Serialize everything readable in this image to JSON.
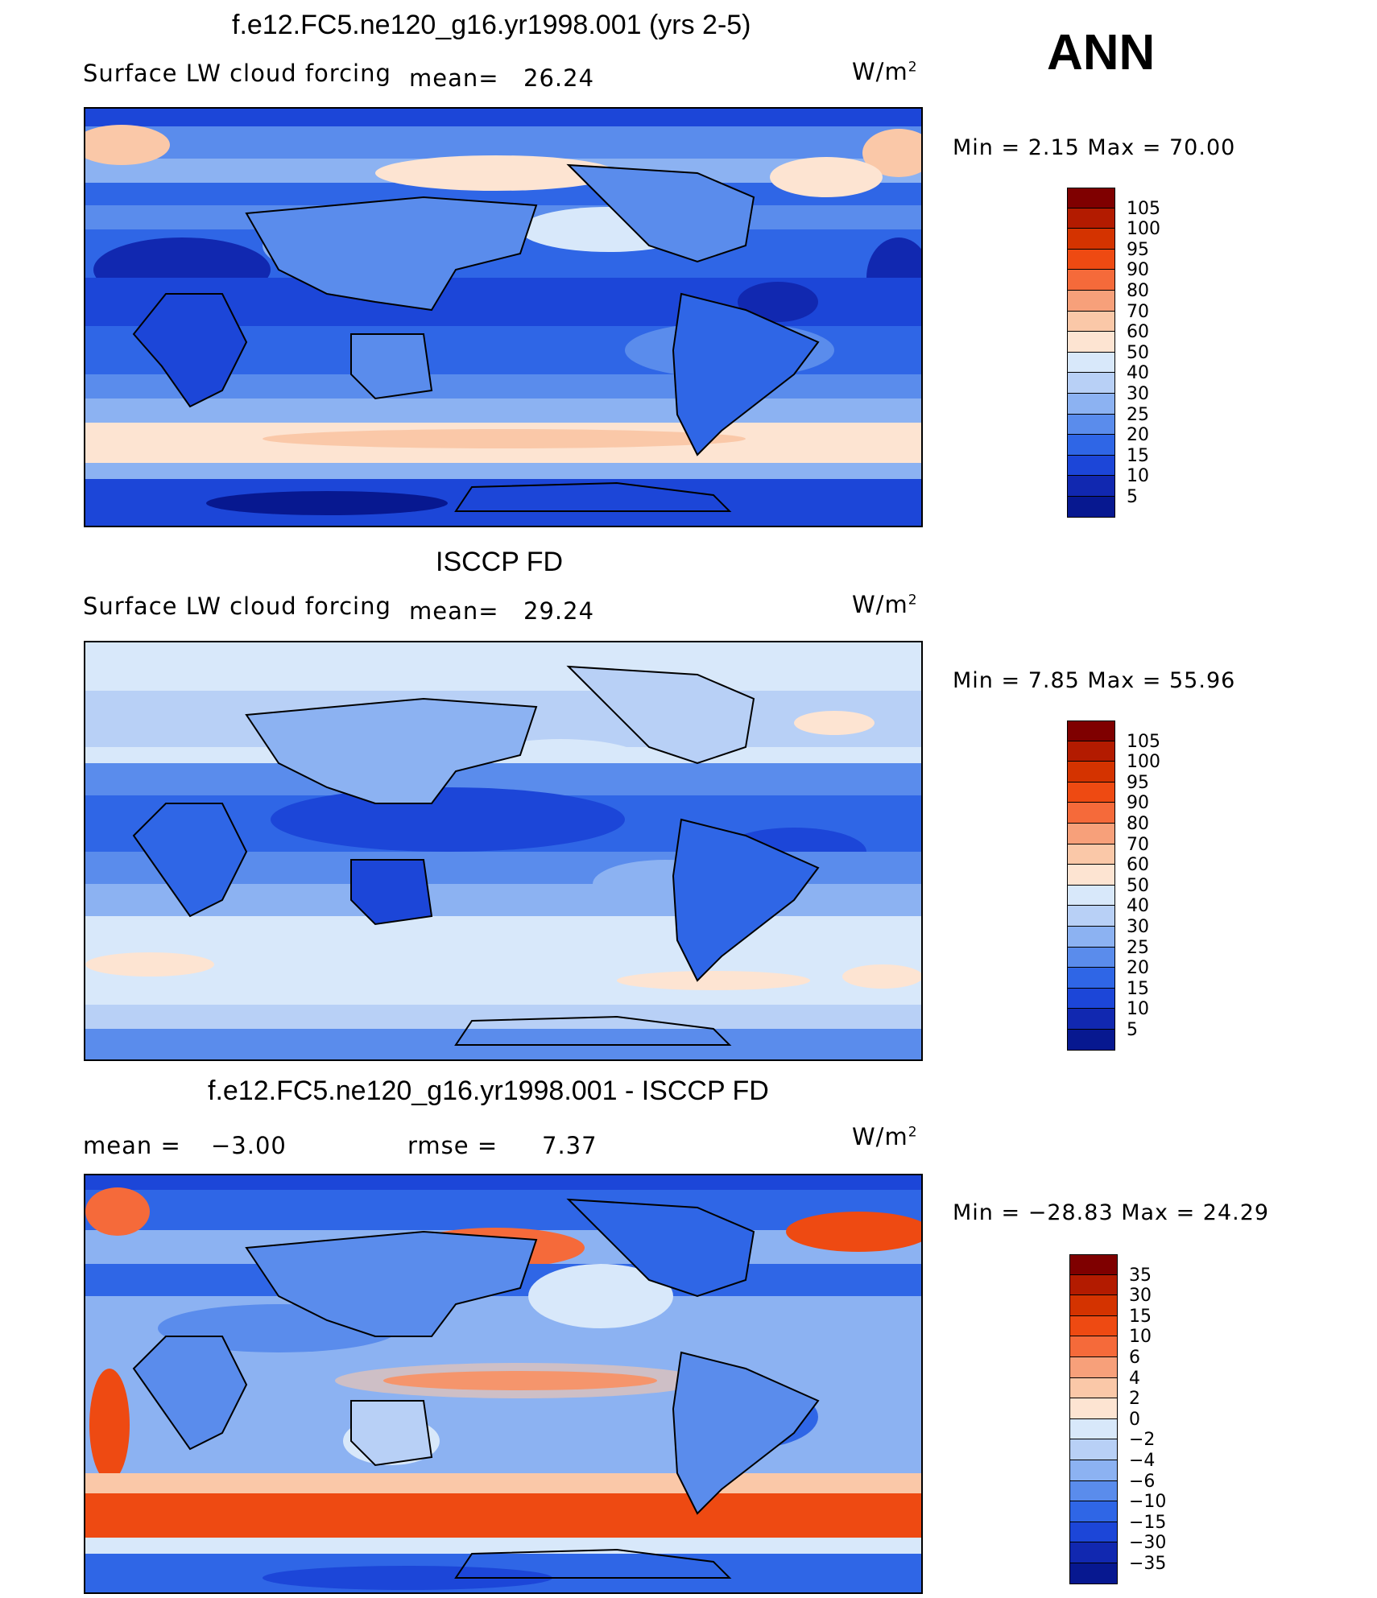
{
  "season": "ANN",
  "units": "W/m",
  "units_exp": "2",
  "panels": [
    {
      "title": "f.e12.FC5.ne120_g16.yr1998.001 (yrs 2-5)",
      "variable": "Surface LW cloud forcing",
      "stat1": "mean=",
      "stat1_value": "26.24",
      "minmax": "Min =     2.15 Max =    70.00",
      "colorbar_labels": [
        "105",
        "100",
        "95",
        "90",
        "80",
        "70",
        "60",
        "50",
        "40",
        "30",
        "25",
        "20",
        "15",
        "10",
        "5"
      ],
      "colors": [
        "#7f0000",
        "#b31b00",
        "#d43300",
        "#ee4a12",
        "#f56a3a",
        "#f7a07a",
        "#fac8a8",
        "#fde4d2",
        "#d8e8fa",
        "#b8d0f6",
        "#8cb2f2",
        "#5a8cec",
        "#2f66e6",
        "#1c46d8",
        "#1128b0",
        "#071890"
      ]
    },
    {
      "title": "ISCCP FD",
      "variable": "Surface LW cloud forcing",
      "stat1": "mean=",
      "stat1_value": "29.24",
      "minmax": "Min =     7.85 Max =    55.96",
      "colorbar_labels": [
        "105",
        "100",
        "95",
        "90",
        "80",
        "70",
        "60",
        "50",
        "40",
        "30",
        "25",
        "20",
        "15",
        "10",
        "5"
      ],
      "colors": [
        "#7f0000",
        "#b31b00",
        "#d43300",
        "#ee4a12",
        "#f56a3a",
        "#f7a07a",
        "#fac8a8",
        "#fde4d2",
        "#d8e8fa",
        "#b8d0f6",
        "#8cb2f2",
        "#5a8cec",
        "#2f66e6",
        "#1c46d8",
        "#1128b0",
        "#071890"
      ]
    },
    {
      "title": "f.e12.FC5.ne120_g16.yr1998.001 - ISCCP FD",
      "stat1": "mean  =",
      "stat1_value": "−3.00",
      "stat2": "rmse  =",
      "stat2_value": "7.37",
      "minmax": "Min  = −28.83  Max  =    24.29",
      "colorbar_labels": [
        "35",
        "30",
        "15",
        "10",
        "6",
        "4",
        "2",
        "0",
        "−2",
        "−4",
        "−6",
        "−10",
        "−15",
        "−30",
        "−35"
      ],
      "colors": [
        "#7f0000",
        "#b31b00",
        "#d43300",
        "#ee4a12",
        "#f56a3a",
        "#f7a07a",
        "#fac8a8",
        "#fde4d2",
        "#d8e8fa",
        "#b8d0f6",
        "#8cb2f2",
        "#5a8cec",
        "#2f66e6",
        "#1c46d8",
        "#1128b0",
        "#071890"
      ]
    }
  ]
}
